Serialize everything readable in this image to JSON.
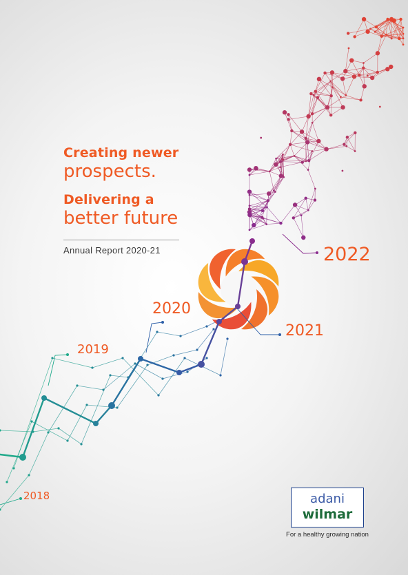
{
  "cover": {
    "headline_line1": "Creating newer",
    "headline_line2": "prospects.",
    "headline_line3": "Delivering a",
    "headline_line4": "better future",
    "subtitle": "Annual Report 2020-21"
  },
  "timeline": {
    "y2018": "2018",
    "y2019": "2019",
    "y2020": "2020",
    "y2021": "2021",
    "y2022": "2022"
  },
  "brand": {
    "logo_line1": "adani",
    "logo_line2": "wilmar",
    "tagline": "For a healthy growing nation"
  },
  "colors": {
    "orange": "#ef5a24",
    "teal": "#1fa98a",
    "blue": "#2d5fa8",
    "purple": "#8a2c8e",
    "red_orange": "#e8452c"
  },
  "icons": [
    "flower-emblem",
    "network-particles"
  ]
}
